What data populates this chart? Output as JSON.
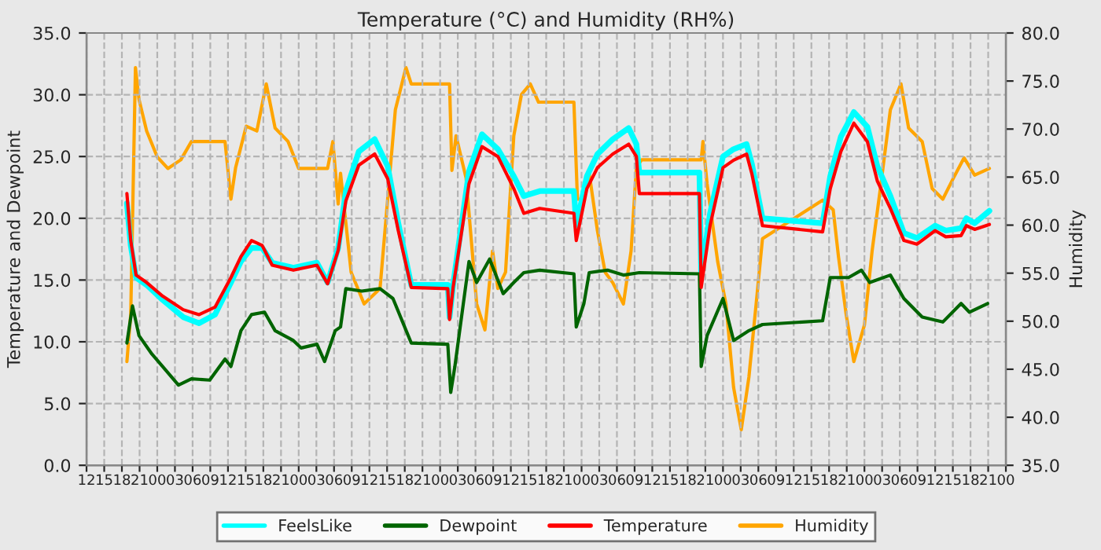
{
  "chart_data": {
    "type": "line",
    "title": "Temperature (°C) and Humidity (RH%)",
    "ylabel": "Temperature and Dewpoint",
    "y2label": "Humidity",
    "xlim": [
      12,
      168
    ],
    "ylim": [
      0,
      35
    ],
    "y2lim": [
      35,
      80
    ],
    "xticks": [
      {
        "value": 12,
        "label": "12"
      },
      {
        "value": 15,
        "label": "15"
      },
      {
        "value": 18,
        "label": "18"
      },
      {
        "value": 21,
        "label": "21"
      },
      {
        "value": 24,
        "label": "00"
      },
      {
        "value": 27,
        "label": "03"
      },
      {
        "value": 30,
        "label": "06"
      },
      {
        "value": 33,
        "label": "09"
      },
      {
        "value": 36,
        "label": "12"
      },
      {
        "value": 39,
        "label": "15"
      },
      {
        "value": 42,
        "label": "18"
      },
      {
        "value": 45,
        "label": "21"
      },
      {
        "value": 48,
        "label": "00"
      },
      {
        "value": 51,
        "label": "03"
      },
      {
        "value": 54,
        "label": "06"
      },
      {
        "value": 57,
        "label": "09"
      },
      {
        "value": 60,
        "label": "12"
      },
      {
        "value": 63,
        "label": "15"
      },
      {
        "value": 66,
        "label": "18"
      },
      {
        "value": 69,
        "label": "21"
      },
      {
        "value": 72,
        "label": "00"
      },
      {
        "value": 75,
        "label": "03"
      },
      {
        "value": 78,
        "label": "06"
      },
      {
        "value": 81,
        "label": "09"
      },
      {
        "value": 84,
        "label": "12"
      },
      {
        "value": 87,
        "label": "15"
      },
      {
        "value": 90,
        "label": "18"
      },
      {
        "value": 93,
        "label": "21"
      },
      {
        "value": 96,
        "label": "00"
      },
      {
        "value": 99,
        "label": "03"
      },
      {
        "value": 102,
        "label": "06"
      },
      {
        "value": 105,
        "label": "09"
      },
      {
        "value": 108,
        "label": "12"
      },
      {
        "value": 111,
        "label": "15"
      },
      {
        "value": 114,
        "label": "18"
      },
      {
        "value": 117,
        "label": "21"
      },
      {
        "value": 120,
        "label": "00"
      },
      {
        "value": 123,
        "label": "03"
      },
      {
        "value": 126,
        "label": "06"
      },
      {
        "value": 129,
        "label": "09"
      },
      {
        "value": 132,
        "label": "12"
      },
      {
        "value": 135,
        "label": "15"
      },
      {
        "value": 138,
        "label": "18"
      },
      {
        "value": 141,
        "label": "21"
      },
      {
        "value": 144,
        "label": "00"
      },
      {
        "value": 147,
        "label": "03"
      },
      {
        "value": 150,
        "label": "06"
      },
      {
        "value": 153,
        "label": "09"
      },
      {
        "value": 156,
        "label": "12"
      },
      {
        "value": 159,
        "label": "15"
      },
      {
        "value": 162,
        "label": "18"
      },
      {
        "value": 165,
        "label": "21"
      },
      {
        "value": 168,
        "label": "00"
      }
    ],
    "yticks": [
      {
        "value": 0,
        "label": "0.0"
      },
      {
        "value": 5,
        "label": "5.0"
      },
      {
        "value": 10,
        "label": "10.0"
      },
      {
        "value": 15,
        "label": "15.0"
      },
      {
        "value": 20,
        "label": "20.0"
      },
      {
        "value": 25,
        "label": "25.0"
      },
      {
        "value": 30,
        "label": "30.0"
      },
      {
        "value": 35,
        "label": "35.0"
      }
    ],
    "y2ticks": [
      {
        "value": 35,
        "label": "35.0"
      },
      {
        "value": 40,
        "label": "40.0"
      },
      {
        "value": 45,
        "label": "45.0"
      },
      {
        "value": 50,
        "label": "50.0"
      },
      {
        "value": 55,
        "label": "55.0"
      },
      {
        "value": 60,
        "label": "60.0"
      },
      {
        "value": 65,
        "label": "65.0"
      },
      {
        "value": 70,
        "label": "70.0"
      },
      {
        "value": 75,
        "label": "75.0"
      },
      {
        "value": 80,
        "label": "80.0"
      }
    ],
    "grid": true,
    "legend": "bottom",
    "line_style": "solid",
    "series": [
      {
        "name": "FeelsLike",
        "color": "#00ffff",
        "x": [
          18.85,
          19.5,
          20.4,
          22.2,
          24.9,
          28.4,
          31.1,
          33.8,
          36.5,
          38.2,
          40,
          41.8,
          43.5,
          47.1,
          51.1,
          52.9,
          54.7,
          56,
          58.2,
          60.9,
          63.1,
          64.9,
          67.1,
          73.3,
          73.6,
          74.2,
          76.9,
          79.1,
          81.8,
          84.5,
          86.2,
          88.9,
          94.7,
          95.1,
          96.9,
          98.7,
          101.3,
          104,
          105.3,
          105.8,
          116,
          116.3,
          117.8,
          120,
          121.8,
          124,
          124.9,
          126.7,
          136.9,
          138.2,
          140,
          142.2,
          144.5,
          146.2,
          148.4,
          150.7,
          152.9,
          156,
          157.8,
          160.4,
          161.3,
          162.7,
          165.2
        ],
        "values": [
          21.2,
          17.8,
          15.2,
          14.6,
          13.4,
          12.0,
          11.5,
          12.2,
          14.8,
          16.5,
          17.6,
          17.6,
          16.4,
          16.0,
          16.4,
          14.8,
          17.6,
          22.2,
          25.4,
          26.4,
          24.2,
          19.6,
          14.6,
          14.6,
          12.0,
          14.6,
          23.8,
          26.8,
          25.6,
          23.4,
          21.8,
          22.2,
          22.2,
          19.4,
          23.4,
          25.2,
          26.4,
          27.3,
          26.0,
          23.7,
          23.7,
          15.4,
          20.4,
          25.0,
          25.6,
          26.0,
          24.4,
          20.0,
          19.6,
          23.4,
          26.6,
          28.6,
          27.4,
          24.2,
          21.8,
          18.8,
          18.4,
          19.4,
          19.0,
          19.2,
          20.0,
          19.6,
          20.6
        ]
      },
      {
        "name": "Dewpoint",
        "color": "#006400",
        "x": [
          18.85,
          19.8,
          20.9,
          23.1,
          24.9,
          27.6,
          29.8,
          32.9,
          35.5,
          36.5,
          38.2,
          40,
          42.2,
          44,
          47.1,
          48.4,
          51.1,
          52.4,
          54.2,
          55.1,
          56,
          58.7,
          61.8,
          64,
          67.1,
          73.3,
          73.8,
          74.5,
          76.9,
          78.2,
          80.4,
          82.7,
          84.5,
          86.2,
          88.9,
          94.7,
          95.1,
          96.4,
          97.3,
          100.4,
          103.1,
          105.8,
          116,
          116.3,
          117.3,
          120,
          121.8,
          124.4,
          126.7,
          136.9,
          138.2,
          141.3,
          143.5,
          144.9,
          148.4,
          150.7,
          153.8,
          157.3,
          160.4,
          161.8,
          164.9
        ],
        "values": [
          9.9,
          12.9,
          10.5,
          9.0,
          8.0,
          6.5,
          7.0,
          6.9,
          8.6,
          8.0,
          10.9,
          12.2,
          12.4,
          10.9,
          10.1,
          9.5,
          9.8,
          8.4,
          10.9,
          11.2,
          14.3,
          14.1,
          14.3,
          13.5,
          9.9,
          9.8,
          5.9,
          8.0,
          16.5,
          14.8,
          16.7,
          13.9,
          14.8,
          15.6,
          15.8,
          15.5,
          11.2,
          13.1,
          15.6,
          15.8,
          15.4,
          15.6,
          15.5,
          8.0,
          10.5,
          13.5,
          10.1,
          10.9,
          11.4,
          11.7,
          15.2,
          15.2,
          15.8,
          14.8,
          15.4,
          13.5,
          12.0,
          11.6,
          13.1,
          12.4,
          13.1
        ]
      },
      {
        "name": "Temperature",
        "color": "#ff0000",
        "x": [
          18.85,
          19.5,
          20.4,
          22.2,
          24.9,
          28.4,
          31.1,
          33.8,
          36.5,
          38.2,
          40,
          41.8,
          43.5,
          47.1,
          51.1,
          52.9,
          54.7,
          56,
          58.2,
          60.9,
          63.1,
          64.9,
          67.1,
          73.3,
          73.6,
          74.2,
          76.9,
          79.1,
          81.8,
          84.5,
          86.2,
          88.9,
          94.7,
          95.1,
          96.9,
          98.7,
          101.3,
          104,
          105.3,
          105.8,
          116,
          116.3,
          117.8,
          120,
          121.8,
          124,
          124.9,
          126.7,
          136.9,
          138.2,
          140,
          142.2,
          144.5,
          146.2,
          148.4,
          150.7,
          152.9,
          156,
          157.8,
          160.4,
          161.3,
          162.7,
          165.2
        ],
        "values": [
          22.0,
          18.2,
          15.4,
          14.8,
          13.7,
          12.6,
          12.2,
          12.8,
          15.2,
          16.9,
          18.2,
          17.8,
          16.2,
          15.8,
          16.2,
          14.7,
          17.4,
          21.4,
          24.3,
          25.2,
          23.2,
          19.0,
          14.4,
          14.3,
          11.8,
          14.4,
          22.8,
          25.8,
          25.0,
          22.4,
          20.4,
          20.8,
          20.4,
          18.2,
          22.4,
          24.1,
          25.2,
          26.0,
          25.0,
          22.0,
          22.0,
          14.4,
          19.4,
          24.1,
          24.7,
          25.2,
          23.6,
          19.4,
          18.9,
          22.4,
          25.4,
          27.7,
          26.2,
          23.0,
          20.8,
          18.2,
          17.9,
          19.0,
          18.5,
          18.6,
          19.4,
          19.1,
          19.5
        ]
      },
      {
        "name": "Humidity",
        "color": "#ffa500",
        "axis": "y2",
        "x": [
          18.85,
          19.5,
          20.3,
          20.9,
          22.2,
          24,
          25.8,
          28,
          29.8,
          35.5,
          36.5,
          37.3,
          39.1,
          40.9,
          42.5,
          44,
          46.2,
          48,
          52.9,
          53.8,
          54.7,
          55.1,
          56.9,
          59.1,
          61.8,
          63.1,
          64.4,
          66.2,
          67.1,
          73.6,
          74,
          74.7,
          76.4,
          78.2,
          79.6,
          80.9,
          81.8,
          83.1,
          84.5,
          85.8,
          87.3,
          88.7,
          94.7,
          95.3,
          96,
          97.3,
          98.7,
          100,
          101.3,
          103.1,
          104.4,
          105.3,
          106.2,
          116.3,
          116.6,
          117.3,
          119.1,
          120.5,
          121.8,
          123.1,
          124.4,
          125.8,
          126.7,
          136.9,
          138.7,
          139.6,
          140.9,
          142.2,
          144,
          145.3,
          146.7,
          148.4,
          150.2,
          151.5,
          153.8,
          155.5,
          157.3,
          159.1,
          160.9,
          162.7,
          165.2
        ],
        "values": [
          45.8,
          50.7,
          76.4,
          73.1,
          69.8,
          67.1,
          65.9,
          66.8,
          68.7,
          68.7,
          62.7,
          66.0,
          70.3,
          69.8,
          74.7,
          70.1,
          68.7,
          65.9,
          65.9,
          68.7,
          62.2,
          65.4,
          55.1,
          51.8,
          53.4,
          62.7,
          72.0,
          76.4,
          74.7,
          74.7,
          65.7,
          69.3,
          64.9,
          51.8,
          49.1,
          57.3,
          53.4,
          55.1,
          69.3,
          73.6,
          74.7,
          72.8,
          72.8,
          62.7,
          62.7,
          65.4,
          59.4,
          55.1,
          54.0,
          51.8,
          57.3,
          66.0,
          66.8,
          66.8,
          68.7,
          64.3,
          56.2,
          51.8,
          43.1,
          38.7,
          44.2,
          52.9,
          58.6,
          62.6,
          61.6,
          56.7,
          50.7,
          45.8,
          49.6,
          57.3,
          63.8,
          72.0,
          74.7,
          70.1,
          68.7,
          63.8,
          62.7,
          64.9,
          67.0,
          65.2,
          65.9
        ]
      }
    ]
  }
}
